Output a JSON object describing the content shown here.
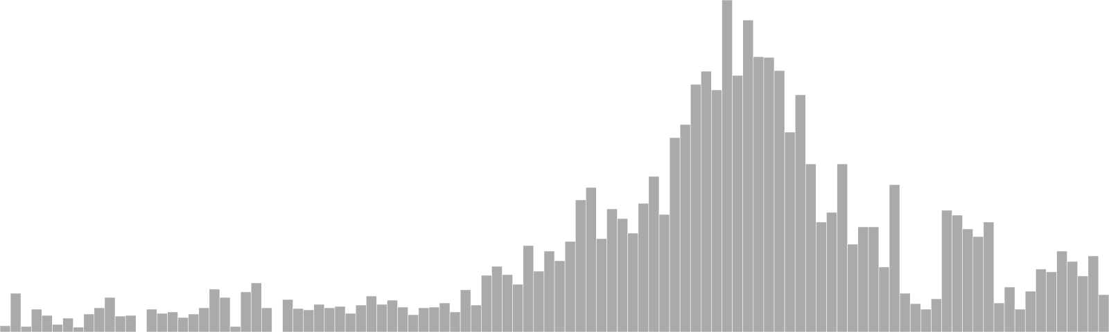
{
  "chart_data": {
    "type": "bar",
    "title": "",
    "xlabel": "",
    "ylabel": "",
    "ylim": [
      0,
      480
    ],
    "grid": false,
    "bar_color": "#aaaaaa",
    "bar_edge_color": "#ffffff",
    "values": [
      9,
      56,
      8,
      33,
      24,
      11,
      20,
      7,
      26,
      35,
      50,
      23,
      24,
      0,
      33,
      27,
      29,
      21,
      26,
      35,
      62,
      50,
      8,
      58,
      71,
      35,
      0,
      47,
      34,
      32,
      40,
      35,
      37,
      27,
      39,
      52,
      40,
      46,
      36,
      25,
      35,
      36,
      42,
      29,
      61,
      39,
      82,
      95,
      83,
      69,
      125,
      88,
      117,
      103,
      131,
      191,
      209,
      135,
      178,
      164,
      143,
      186,
      225,
      170,
      281,
      300,
      358,
      377,
      350,
      480,
      371,
      451,
      398,
      397,
      378,
      289,
      343,
      243,
      159,
      173,
      243,
      127,
      152,
      152,
      94,
      213,
      56,
      41,
      33,
      48,
      176,
      169,
      149,
      138,
      159,
      42,
      65,
      33,
      59,
      91,
      87,
      117,
      102,
      81,
      110,
      54
    ]
  }
}
